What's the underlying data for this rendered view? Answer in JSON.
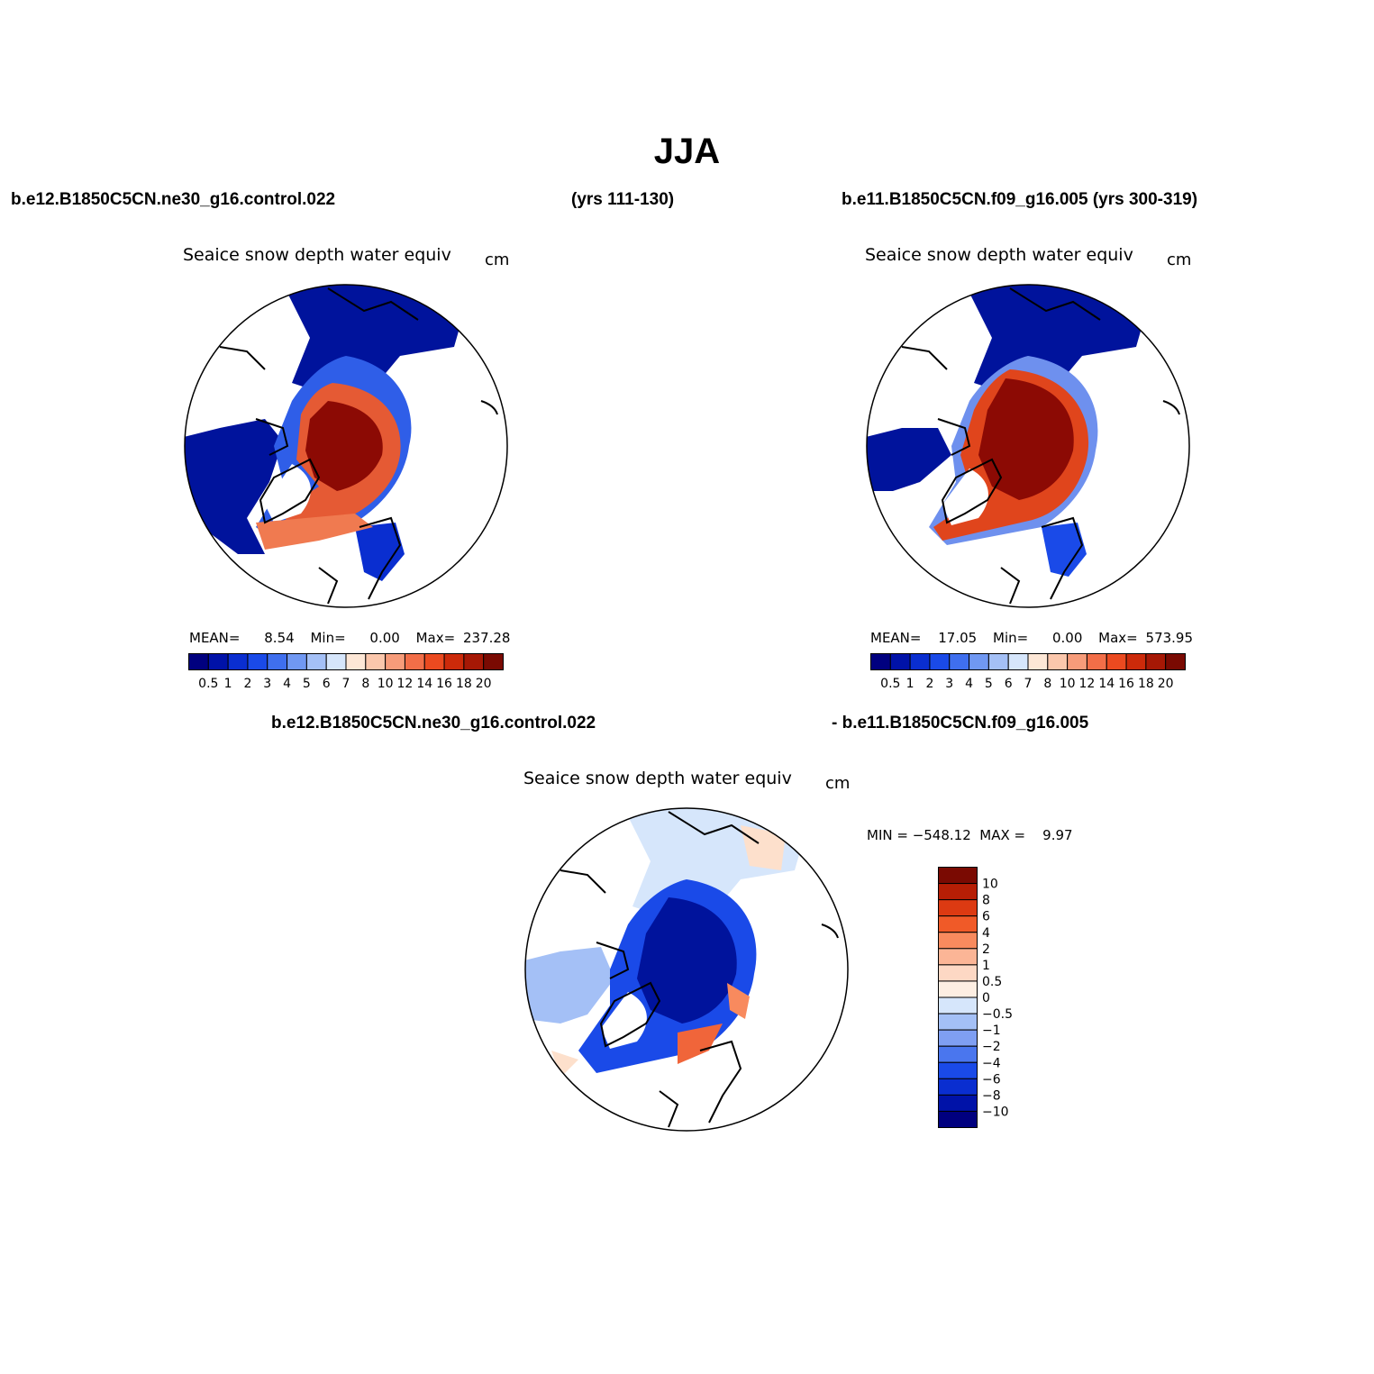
{
  "figure": {
    "title": "JJA",
    "case1_label": "b.e12.B1850C5CN.ne30_g16.control.022",
    "case1_years": "(yrs 111-130)",
    "case2_label": "b.e11.B1850C5CN.f09_g16.005 (yrs 300-319)",
    "diff_label_a": "b.e12.B1850C5CN.ne30_g16.control.022",
    "diff_label_b": "- b.e11.B1850C5CN.f09_g16.005"
  },
  "panels": [
    {
      "title": "Seaice snow depth water equiv",
      "units": "cm",
      "stats": {
        "mean_label": "MEAN=",
        "mean": "8.54",
        "min_label": "Min=",
        "min": "0.00",
        "max_label": "Max=",
        "max": "237.28"
      }
    },
    {
      "title": "Seaice snow depth water equiv",
      "units": "cm",
      "stats": {
        "mean_label": "MEAN=",
        "mean": "17.05",
        "min_label": "Min=",
        "min": "0.00",
        "max_label": "Max=",
        "max": "573.95"
      }
    },
    {
      "title": "Seaice snow depth water equiv",
      "units": "cm",
      "stats_text": "MIN = −548.12  MAX =    9.97"
    }
  ],
  "colorbar_abs": {
    "labels": [
      "0.5",
      "1",
      "2",
      "3",
      "4",
      "5",
      "6",
      "7",
      "8",
      "10",
      "12",
      "14",
      "16",
      "18",
      "20"
    ],
    "colors": [
      "#00007f",
      "#0012a8",
      "#0a2ed0",
      "#1a4ae8",
      "#3f6fee",
      "#7098f2",
      "#a4c0f6",
      "#d6e6fb",
      "#fde7d6",
      "#fbc7ac",
      "#f79c7a",
      "#f26e48",
      "#eb4a20",
      "#cc2a0a",
      "#a61805",
      "#7a0a02"
    ]
  },
  "colorbar_diff": {
    "labels": [
      "10",
      "8",
      "6",
      "4",
      "2",
      "1",
      "0.5",
      "0",
      "−0.5",
      "−1",
      "−2",
      "−4",
      "−6",
      "−8",
      "−10"
    ],
    "colors": [
      "#7a0a02",
      "#b61e05",
      "#dc3a12",
      "#f05a28",
      "#f88a5e",
      "#fbb596",
      "#fdd8c4",
      "#fdeee2",
      "#d6e6fb",
      "#a4c0f6",
      "#7f9ff2",
      "#4a76ee",
      "#1a4ae8",
      "#0a2ed0",
      "#0012a8",
      "#00007f"
    ]
  },
  "colors": {
    "background": "#ffffff",
    "coast": "#000000"
  }
}
